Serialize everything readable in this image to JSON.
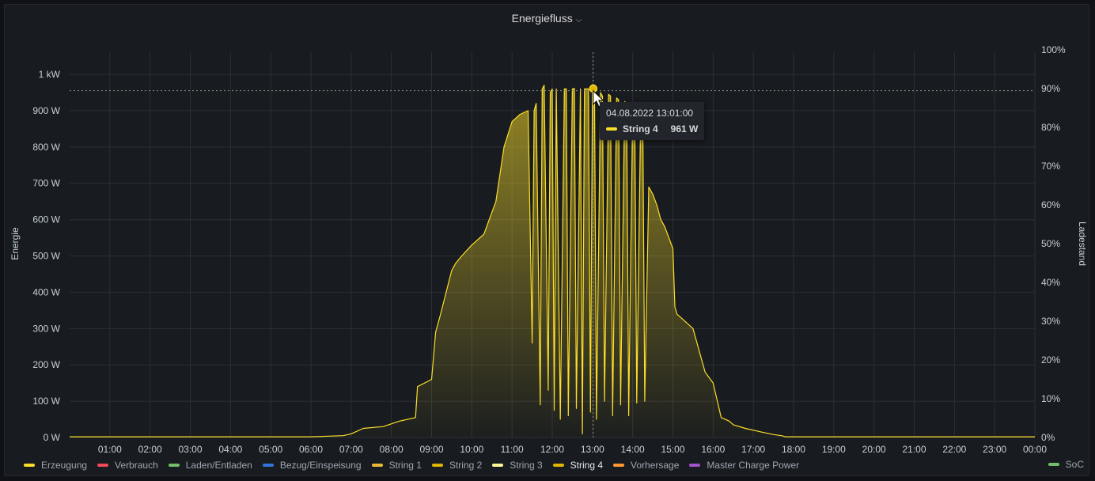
{
  "panel": {
    "title": "Energiefluss"
  },
  "tooltip": {
    "time": "04.08.2022 13:01:00",
    "series": "String 4",
    "value": "961 W",
    "color": "#fade2a"
  },
  "legend": [
    {
      "label": "Erzeugung",
      "color": "#fade2a"
    },
    {
      "label": "Verbrauch",
      "color": "#f2495c"
    },
    {
      "label": "Laden/Entladen",
      "color": "#73bf69"
    },
    {
      "label": "Bezug/Einspeisung",
      "color": "#3274d9"
    },
    {
      "label": "String 1",
      "color": "#eab839"
    },
    {
      "label": "String 2",
      "color": "#e0b400"
    },
    {
      "label": "String 3",
      "color": "#fff899"
    },
    {
      "label": "String 4",
      "color": "#e0b400",
      "active": true
    },
    {
      "label": "Vorhersage",
      "color": "#ff9830"
    },
    {
      "label": "Master Charge Power",
      "color": "#a352cc"
    }
  ],
  "legend_right": {
    "label": "SoC",
    "color": "#73bf69"
  },
  "colors": {
    "series_line": "#fade2a",
    "background": "#181b1f",
    "grid": "#2c2f36"
  },
  "chart_data": {
    "type": "area",
    "title": "Energiefluss",
    "ylabel": "Energie",
    "ylabel_right": "Ladestand",
    "y_unit": "W",
    "ylim": [
      0,
      1000
    ],
    "y_ticks": [
      "0 W",
      "100 W",
      "200 W",
      "300 W",
      "400 W",
      "500 W",
      "600 W",
      "700 W",
      "800 W",
      "900 W",
      "1 kW"
    ],
    "y_right_ticks": [
      "0%",
      "10%",
      "20%",
      "30%",
      "40%",
      "50%",
      "60%",
      "70%",
      "80%",
      "90%",
      "100%"
    ],
    "x_ticks": [
      "01:00",
      "02:00",
      "03:00",
      "04:00",
      "05:00",
      "06:00",
      "07:00",
      "08:00",
      "09:00",
      "10:00",
      "11:00",
      "12:00",
      "13:00",
      "14:00",
      "15:00",
      "16:00",
      "17:00",
      "18:00",
      "19:00",
      "20:00",
      "21:00",
      "22:00",
      "23:00",
      "00:00"
    ],
    "xlim_hours": [
      0,
      24
    ],
    "grid": true,
    "legend_position": "bottom",
    "series": [
      {
        "name": "String 4",
        "x_hours": [
          0,
          6.0,
          6.8,
          7.0,
          7.3,
          7.8,
          8.2,
          8.6,
          8.65,
          9.0,
          9.1,
          9.2,
          9.5,
          9.6,
          9.75,
          10.0,
          10.3,
          10.6,
          10.8,
          11.0,
          11.2,
          11.4,
          11.5,
          11.55,
          11.6,
          11.7,
          11.75,
          11.8,
          11.9,
          11.95,
          12.0,
          12.05,
          12.1,
          12.2,
          12.3,
          12.35,
          12.4,
          12.5,
          12.55,
          12.6,
          12.7,
          12.75,
          12.8,
          12.9,
          12.95,
          13.0,
          13.05,
          13.1,
          13.2,
          13.25,
          13.3,
          13.4,
          13.45,
          13.5,
          13.6,
          13.65,
          13.7,
          13.8,
          13.85,
          13.9,
          14.0,
          14.05,
          14.1,
          14.2,
          14.25,
          14.3,
          14.4,
          14.45,
          14.5,
          14.6,
          14.65,
          14.7,
          14.8,
          14.9,
          15.0,
          15.05,
          15.1,
          15.5,
          15.8,
          16.0,
          16.2,
          16.4,
          16.5,
          16.8,
          17.2,
          17.5,
          17.7,
          17.8,
          18.2,
          18.6,
          19.0,
          19.4,
          19.8,
          20.2,
          20.5,
          21.0,
          22.0,
          23.0,
          24.0
        ],
        "values": [
          2,
          2,
          5,
          10,
          25,
          30,
          45,
          55,
          140,
          160,
          290,
          330,
          460,
          480,
          500,
          530,
          560,
          650,
          800,
          870,
          890,
          900,
          260,
          900,
          920,
          90,
          960,
          970,
          130,
          950,
          960,
          75,
          960,
          50,
          960,
          960,
          60,
          960,
          961,
          80,
          960,
          10,
          960,
          960,
          70,
          960,
          950,
          50,
          950,
          940,
          100,
          945,
          940,
          60,
          935,
          930,
          90,
          925,
          920,
          60,
          915,
          910,
          95,
          900,
          890,
          100,
          690,
          680,
          670,
          640,
          620,
          600,
          580,
          550,
          520,
          360,
          340,
          300,
          180,
          150,
          55,
          45,
          35,
          25,
          15,
          8,
          5,
          2,
          2,
          2,
          2,
          2,
          2,
          2,
          2,
          2,
          2,
          2,
          2
        ]
      }
    ],
    "highlight": {
      "x_hour": 13.02,
      "value": 961
    },
    "reference_value": 955
  }
}
